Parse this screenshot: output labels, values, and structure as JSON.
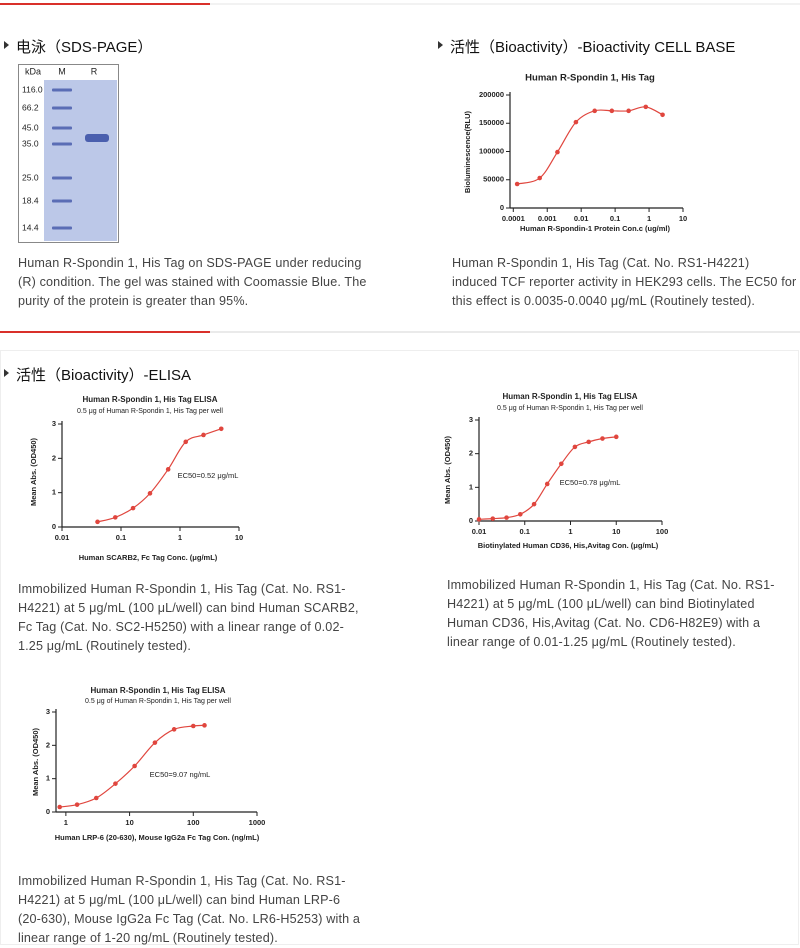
{
  "sds_page": {
    "heading": "电泳（SDS-PAGE）",
    "gel": {
      "lanes": [
        "kDa",
        "M",
        "R"
      ],
      "markers": [
        "116.0",
        "66.2",
        "45.0",
        "35.0",
        "25.0",
        "18.4",
        "14.4"
      ]
    },
    "caption": "Human R-Spondin 1, His Tag on SDS-PAGE under reducing (R) condition. The gel was stained with Coomassie Blue. The purity of the protein is greater than 95%."
  },
  "cell_base": {
    "heading": "活性（Bioactivity）-Bioactivity CELL BASE",
    "caption": "Human R-Spondin 1, His Tag (Cat. No. RS1-H4221) induced TCF reporter activity in HEK293 cells. The EC50 for this effect is 0.0035-0.0040 μg/mL (Routinely tested)."
  },
  "elisa": {
    "heading": "活性（Bioactivity）-ELISA",
    "captions": [
      "Immobilized Human R-Spondin 1, His Tag (Cat. No. RS1-H4221) at 5 μg/mL (100 μL/well) can bind Human SCARB2, Fc Tag (Cat. No. SC2-H5250) with a linear range of 0.02-1.25 μg/mL (Routinely tested).",
      "Immobilized Human R-Spondin 1, His Tag (Cat. No. RS1-H4221) at 5 μg/mL (100 μL/well) can bind Biotinylated Human CD36, His,Avitag (Cat. No. CD6-H82E9) with a linear range of 0.01-1.25 μg/mL (Routinely tested).",
      "Immobilized Human R-Spondin 1, His Tag (Cat. No. RS1-H4221) at 5 μg/mL (100 μL/well) can bind Human LRP-6 (20-630), Mouse IgG2a Fc Tag (Cat. No. LR6-H5253) with a linear range of 1-20 ng/mL (Routinely tested)."
    ]
  },
  "chart_data": [
    {
      "type": "line",
      "title": "Human  R-Spondin 1, His Tag",
      "x_label": "Human R-Spondin-1 Protein Con.c (ug/ml)",
      "y_label": "Bioluminescence(RLU)",
      "log_x": true,
      "color": "#e0463e",
      "x": [
        0.00013,
        0.0006,
        0.002,
        0.007,
        0.025,
        0.08,
        0.25,
        0.8,
        2.5
      ],
      "values": [
        42500,
        53000,
        99000,
        152000,
        172000,
        172000,
        172000,
        179000,
        165000
      ],
      "xlim": [
        8e-05,
        10
      ],
      "xticks": [
        0.0001,
        0.001,
        0.01,
        0.1,
        1,
        10
      ],
      "ylim": [
        0,
        200000
      ],
      "yticks": [
        0,
        50000,
        100000,
        150000,
        200000
      ]
    },
    {
      "type": "line",
      "title": "Human R-Spondin 1, His Tag ELISA",
      "subtitle": "0.5 μg of Human R-Spondin 1, His Tag per well",
      "x_label": "Human SCARB2, Fc Tag Conc. (μg/mL)",
      "y_label": "Mean Abs. (OD450)",
      "annotation": "EC50=0.52 μg/mL",
      "log_x": true,
      "color": "#e0463e",
      "x": [
        0.04,
        0.08,
        0.16,
        0.31,
        0.63,
        1.25,
        2.5,
        5
      ],
      "values": [
        0.15,
        0.28,
        0.55,
        0.98,
        1.68,
        2.48,
        2.68,
        2.86
      ],
      "xlim": [
        0.01,
        10
      ],
      "xticks": [
        0.01,
        0.1,
        1,
        10
      ],
      "ylim": [
        0,
        3
      ],
      "yticks": [
        0,
        1,
        2,
        3
      ]
    },
    {
      "type": "line",
      "title": "Human R-Spondin 1, His Tag ELISA",
      "subtitle": "0.5 μg of  Human R-Spondin 1, His Tag per well",
      "x_label": "Biotinylated Human CD36, His,Avitag Con. (μg/mL)",
      "y_label": "Mean Abs. (OD450)",
      "annotation": "EC50=0.78 μg/mL",
      "log_x": true,
      "color": "#e0463e",
      "x": [
        0.01,
        0.02,
        0.04,
        0.08,
        0.16,
        0.31,
        0.63,
        1.25,
        2.5,
        5,
        10
      ],
      "values": [
        0.05,
        0.07,
        0.1,
        0.2,
        0.5,
        1.1,
        1.7,
        2.2,
        2.35,
        2.45,
        2.5
      ],
      "xlim": [
        0.01,
        100
      ],
      "xticks": [
        0.01,
        0.1,
        1,
        10,
        100
      ],
      "ylim": [
        0,
        3
      ],
      "yticks": [
        0,
        1,
        2,
        3
      ]
    },
    {
      "type": "line",
      "title": "Human R-Spondin 1, His Tag ELISA",
      "subtitle": "0.5 μg of  Human R-Spondin 1, His Tag per well",
      "x_label": "Human LRP-6 (20-630), Mouse IgG2a Fc Tag Con. (ng/mL)",
      "y_label": "Mean Abs. (OD450)",
      "annotation": "EC50=9.07 ng/mL",
      "log_x": true,
      "color": "#e0463e",
      "x": [
        0.8,
        1.5,
        3,
        6,
        12,
        25,
        50,
        100,
        150
      ],
      "values": [
        0.15,
        0.22,
        0.42,
        0.85,
        1.38,
        2.08,
        2.48,
        2.58,
        2.6
      ],
      "xlim": [
        0.7,
        1000
      ],
      "xticks": [
        1,
        10,
        100,
        1000
      ],
      "ylim": [
        0,
        3
      ],
      "yticks": [
        0,
        1,
        2,
        3
      ]
    }
  ]
}
